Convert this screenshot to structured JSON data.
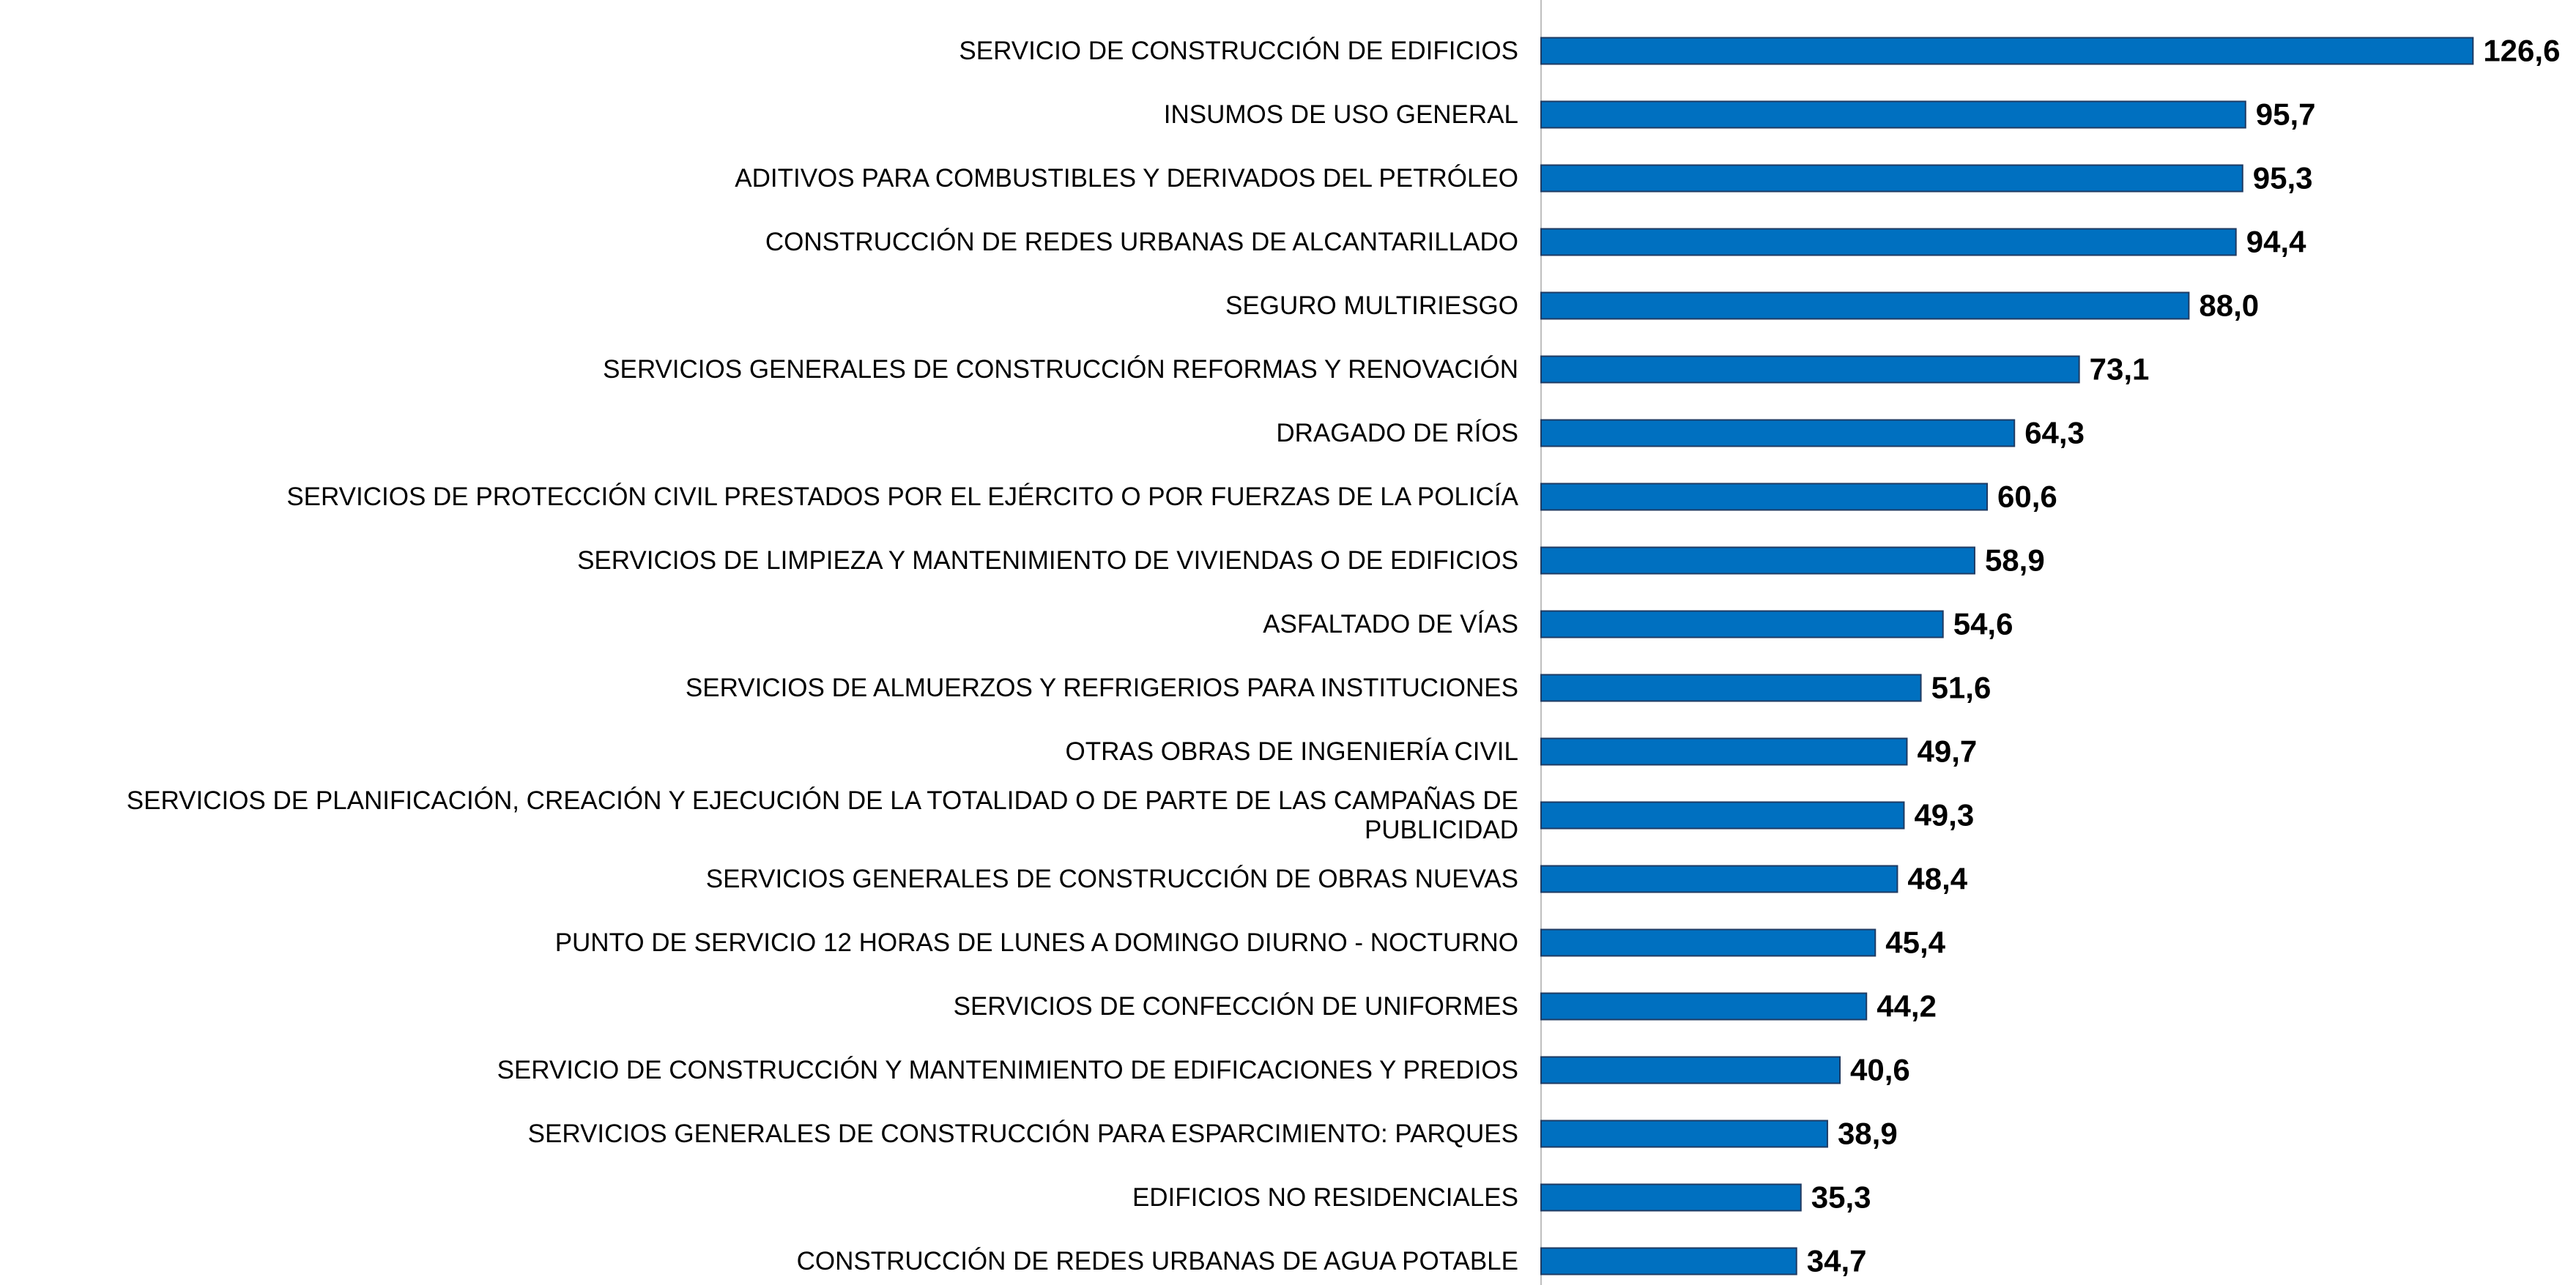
{
  "chart_data": {
    "type": "barh",
    "categories": [
      "SERVICIO DE CONSTRUCCIÓN DE EDIFICIOS",
      "INSUMOS DE USO GENERAL",
      "ADITIVOS PARA COMBUSTIBLES Y DERIVADOS DEL PETRÓLEO",
      "CONSTRUCCIÓN DE REDES URBANAS DE ALCANTARILLADO",
      "SEGURO MULTIRIESGO",
      "SERVICIOS GENERALES DE CONSTRUCCIÓN REFORMAS Y RENOVACIÓN",
      "DRAGADO DE RÍOS",
      "SERVICIOS DE PROTECCIÓN CIVIL PRESTADOS POR EL EJÉRCITO O POR FUERZAS DE LA POLICÍA",
      "SERVICIOS DE LIMPIEZA Y MANTENIMIENTO DE VIVIENDAS O DE EDIFICIOS",
      "ASFALTADO DE VÍAS",
      "SERVICIOS DE ALMUERZOS Y REFRIGERIOS PARA INSTITUCIONES",
      "OTRAS OBRAS DE INGENIERÍA CIVIL",
      "SERVICIOS DE PLANIFICACIÓN, CREACIÓN Y EJECUCIÓN DE LA TOTALIDAD O DE PARTE DE LAS CAMPAÑAS DE PUBLICIDAD",
      "SERVICIOS GENERALES DE CONSTRUCCIÓN DE OBRAS NUEVAS",
      "PUNTO DE SERVICIO 12 HORAS DE LUNES A DOMINGO DIURNO - NOCTURNO",
      "SERVICIOS DE CONFECCIÓN DE UNIFORMES",
      "SERVICIO DE CONSTRUCCIÓN Y MANTENIMIENTO DE EDIFICACIONES Y PREDIOS",
      "SERVICIOS GENERALES DE CONSTRUCCIÓN PARA ESPARCIMIENTO: PARQUES",
      "EDIFICIOS NO RESIDENCIALES",
      "CONSTRUCCIÓN DE REDES URBANAS DE AGUA POTABLE"
    ],
    "values": [
      126.6,
      95.7,
      95.3,
      94.4,
      88.0,
      73.1,
      64.3,
      60.6,
      58.9,
      54.6,
      51.6,
      49.7,
      49.3,
      48.4,
      45.4,
      44.2,
      40.6,
      38.9,
      35.3,
      34.7
    ],
    "value_labels": [
      "126,6",
      "95,7",
      "95,3",
      "94,4",
      "88,0",
      "73,1",
      "64,3",
      "60,6",
      "58,9",
      "54,6",
      "51,6",
      "49,7",
      "49,3",
      "48,4",
      "45,4",
      "44,2",
      "40,6",
      "38,9",
      "35,3",
      "34,7"
    ],
    "color": "#0070c0",
    "xlim": [
      0,
      140
    ]
  }
}
